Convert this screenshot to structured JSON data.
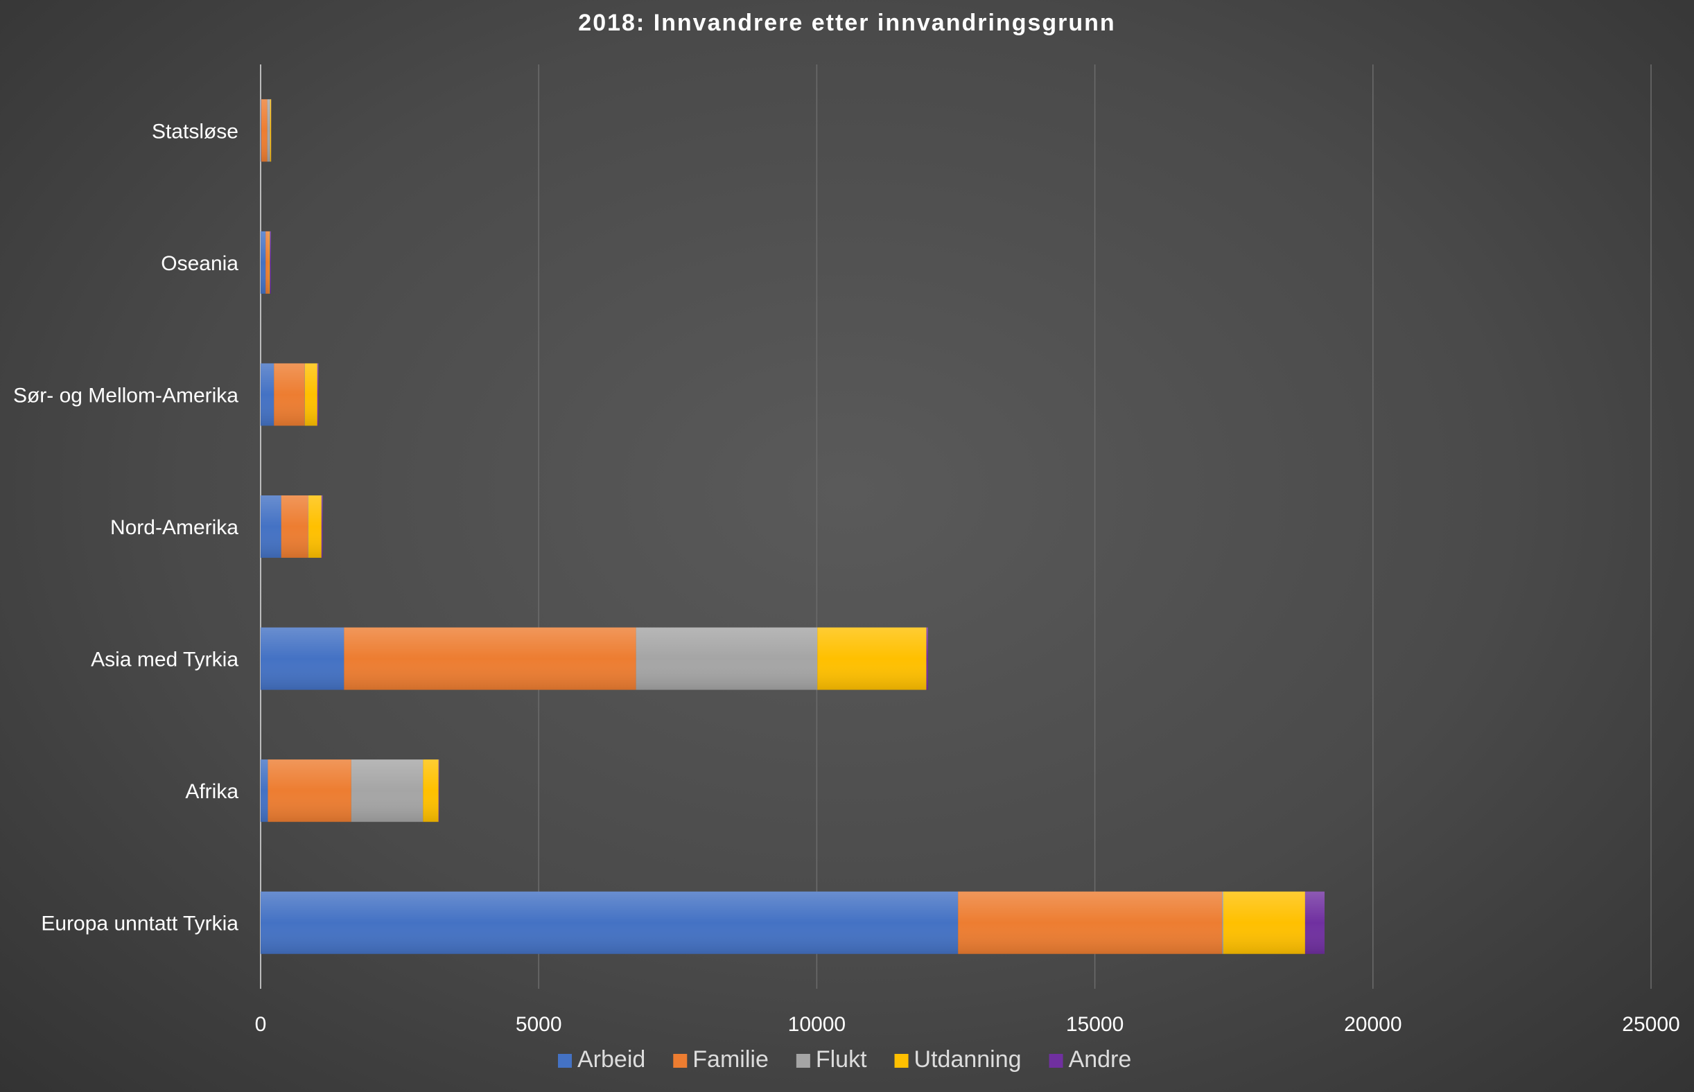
{
  "chart_data": {
    "type": "bar",
    "orientation": "horizontal",
    "stacked": true,
    "title": "2018: Innvandrere etter innvandringsgrunn",
    "xlabel": "",
    "ylabel": "",
    "xlim": [
      0,
      25000
    ],
    "xticks": [
      "0",
      "5000",
      "10000",
      "15000",
      "20000",
      "25000"
    ],
    "grid": true,
    "legend_position": "bottom",
    "categories": [
      "Europa unntatt Tyrkia",
      "Afrika",
      "Asia med Tyrkia",
      "Nord-Amerika",
      "Sør- og Mellom-Amerika",
      "Oseania",
      "Statsløse"
    ],
    "series": [
      {
        "name": "Arbeid",
        "color": "#4472c4",
        "values": [
          12540,
          130,
          1500,
          370,
          240,
          90,
          10
        ]
      },
      {
        "name": "Familie",
        "color": "#ed7d31",
        "values": [
          4750,
          1500,
          5250,
          485,
          550,
          60,
          110
        ]
      },
      {
        "name": "Flukt",
        "color": "#a5a5a5",
        "values": [
          20,
          1290,
          3260,
          5,
          5,
          2,
          50
        ]
      },
      {
        "name": "Utdanning",
        "color": "#ffc000",
        "values": [
          1470,
          280,
          1960,
          235,
          225,
          12,
          20
        ]
      },
      {
        "name": "Andre",
        "color": "#7030a0",
        "values": [
          350,
          10,
          30,
          20,
          20,
          20,
          2
        ]
      }
    ]
  }
}
